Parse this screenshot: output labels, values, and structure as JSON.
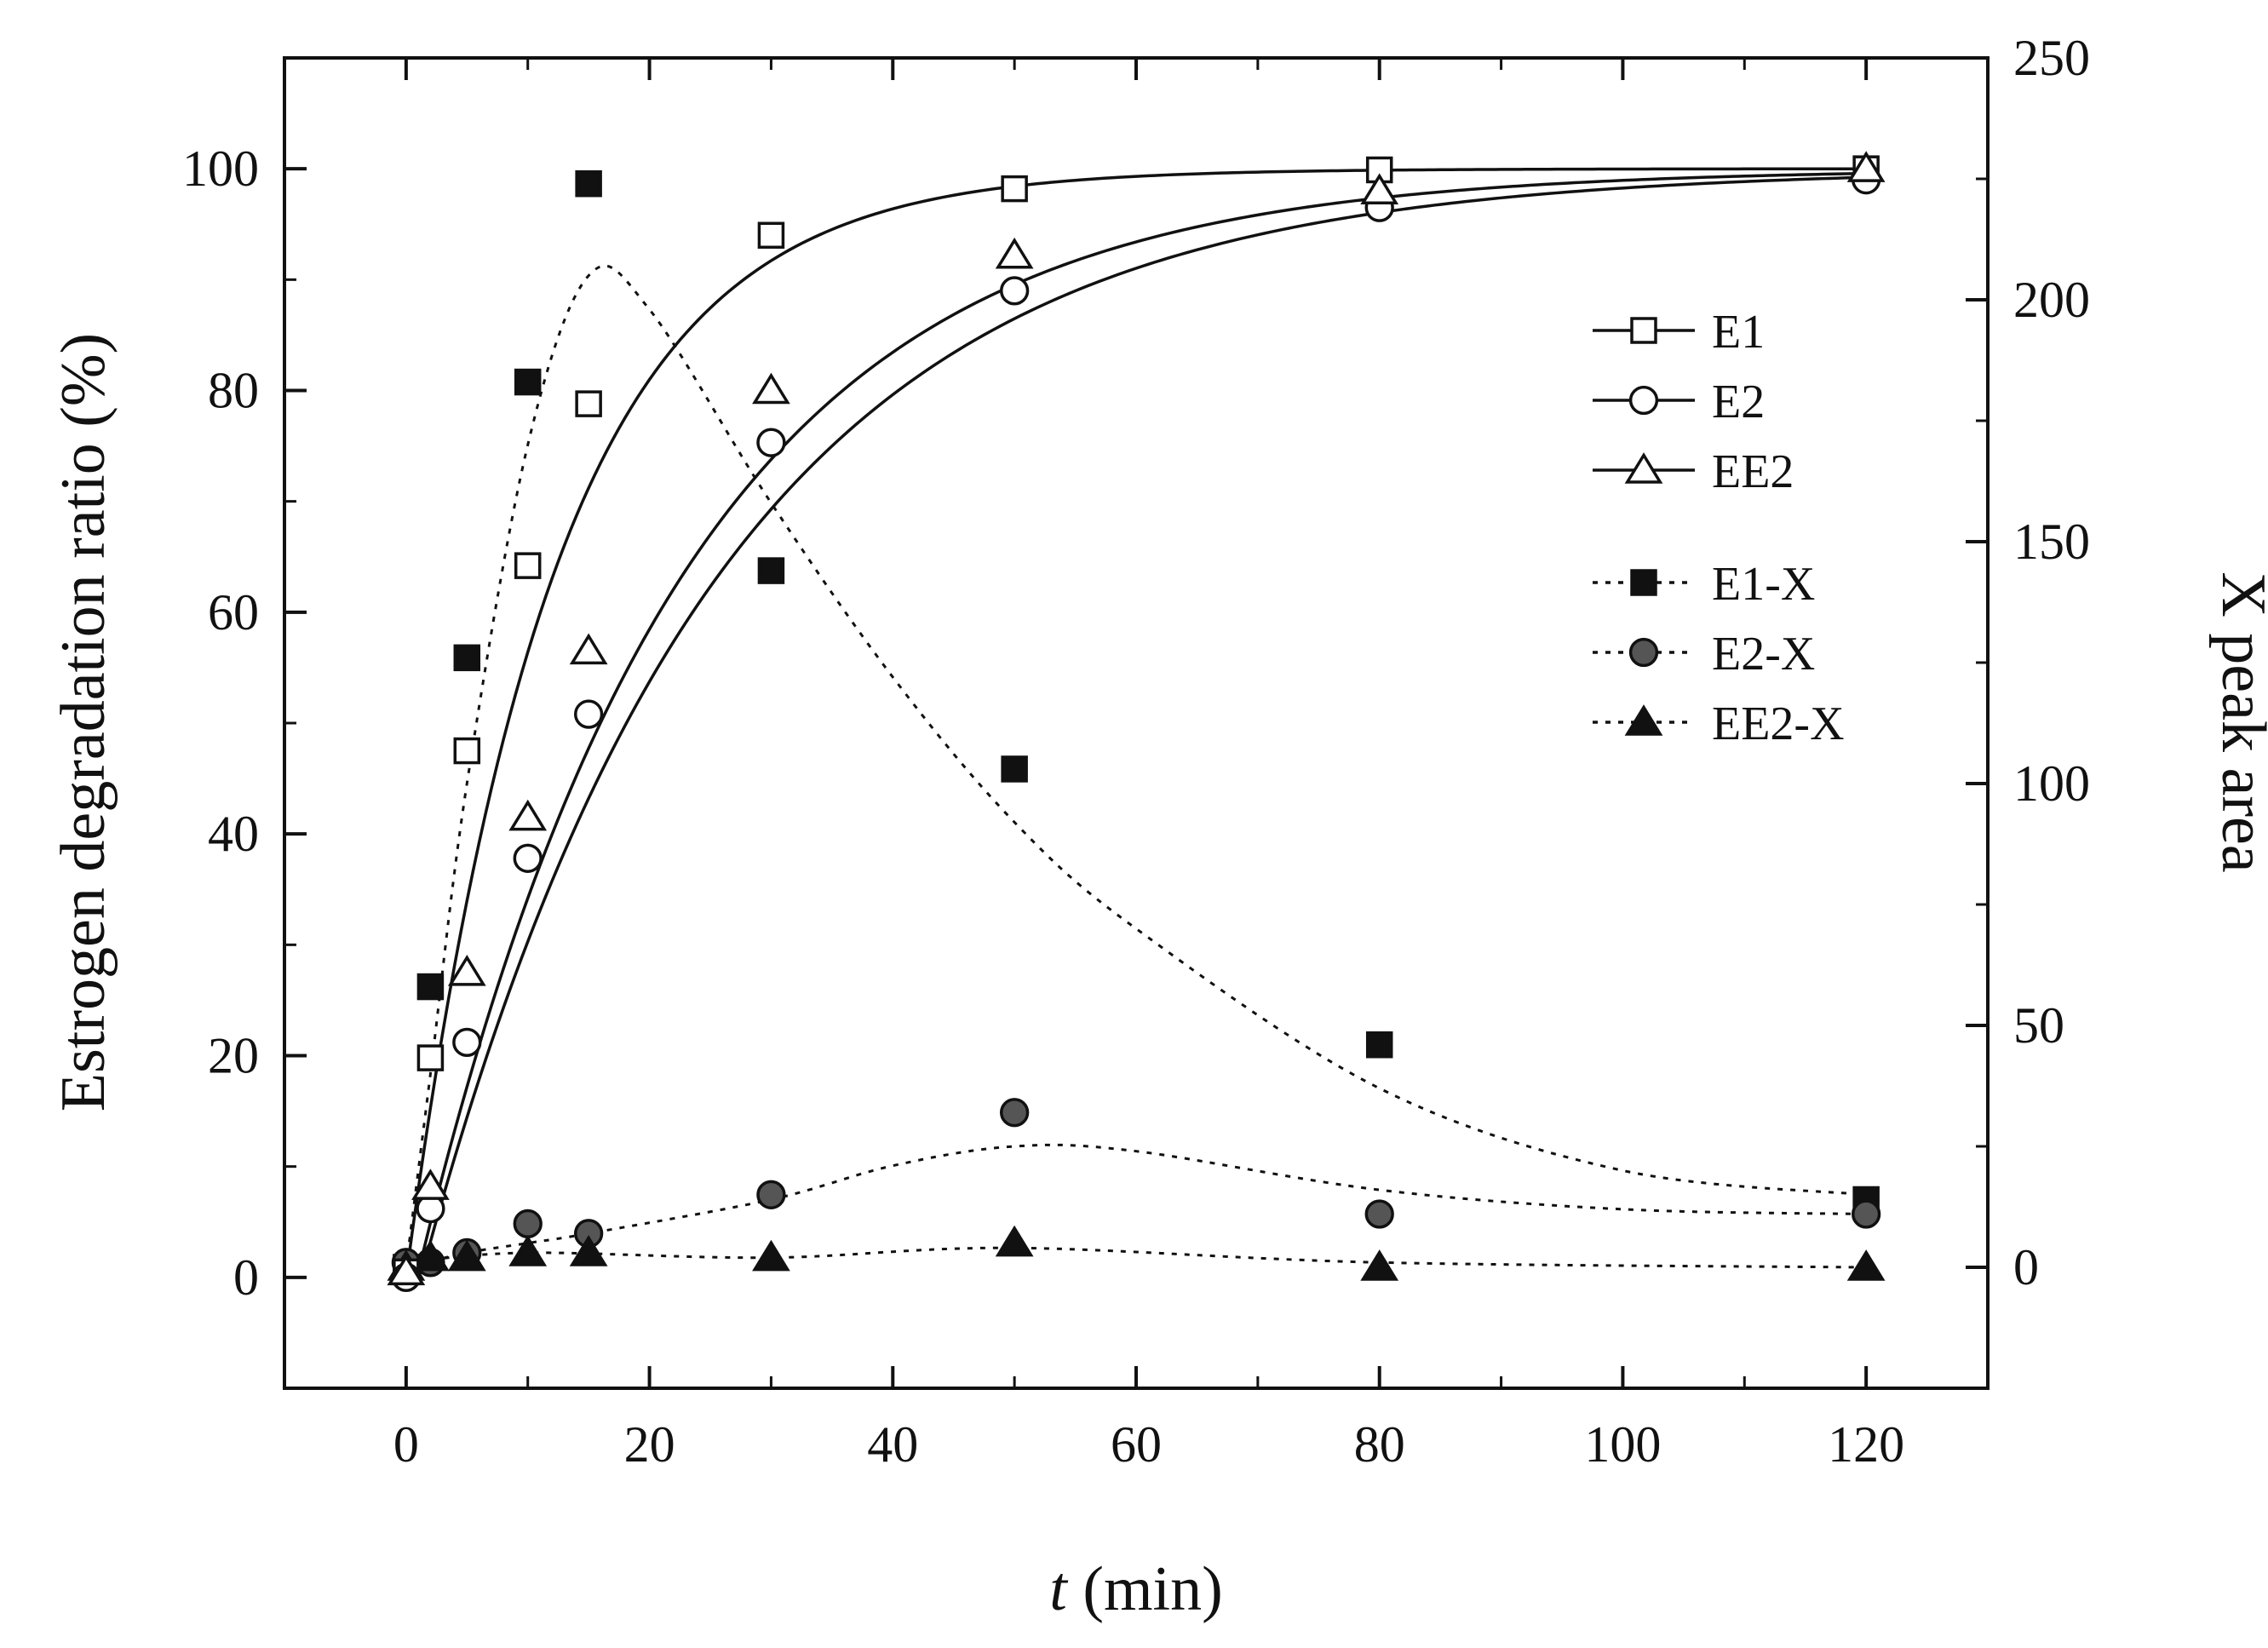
{
  "chart_data": {
    "type": "scatter",
    "x_axis": {
      "label_var": "t",
      "label_rest": " (min)",
      "range": [
        -10,
        130
      ],
      "ticks": [
        0,
        20,
        40,
        60,
        80,
        100,
        120
      ]
    },
    "y_left": {
      "label": "Estrogen degradation ratio (%)",
      "range": [
        -10,
        110
      ],
      "ticks": [
        0,
        20,
        40,
        60,
        80,
        100
      ]
    },
    "y_right": {
      "label": "X peak area",
      "range": [
        -25,
        250
      ],
      "ticks": [
        0,
        50,
        100,
        150,
        200,
        250
      ]
    },
    "series": [
      {
        "name": "E1",
        "axis": "left",
        "marker": "square-open",
        "line": "solid",
        "x": [
          0,
          2,
          5,
          10,
          15,
          30,
          50,
          80,
          120
        ],
        "y": [
          0.5,
          19.8,
          47.5,
          64.2,
          78.8,
          94.0,
          98.2,
          99.9,
          100.0
        ],
        "fit": {
          "model": "1-exp",
          "A": 100,
          "k": 0.083,
          "x0": 0
        }
      },
      {
        "name": "E2",
        "axis": "left",
        "marker": "circle-open",
        "line": "solid",
        "x": [
          0,
          2,
          5,
          10,
          15,
          30,
          50,
          80,
          120
        ],
        "y": [
          0.0,
          6.2,
          21.2,
          37.8,
          50.8,
          75.3,
          89.0,
          96.5,
          99.0
        ],
        "fit": {
          "model": "1-exp",
          "A": 100,
          "k": 0.041,
          "x0": 1.2
        }
      },
      {
        "name": "EE2",
        "axis": "left",
        "marker": "triangle-open",
        "line": "solid",
        "x": [
          0,
          2,
          5,
          10,
          15,
          30,
          50,
          80,
          120
        ],
        "y": [
          0.5,
          8.2,
          27.5,
          41.5,
          56.5,
          80.0,
          92.2,
          98.0,
          100.0
        ],
        "fit": {
          "model": "1-exp",
          "A": 100,
          "k": 0.046,
          "x0": 0.9
        }
      },
      {
        "name": "E1-X",
        "axis": "right",
        "marker": "square-filled",
        "line": "dotted",
        "x": [
          0,
          2,
          5,
          10,
          15,
          30,
          50,
          80,
          120
        ],
        "y": [
          0,
          58,
          126,
          183,
          224,
          144,
          103,
          46,
          14
        ],
        "curve": [
          [
            0,
            0
          ],
          [
            2,
            40
          ],
          [
            5,
            100
          ],
          [
            10,
            170
          ],
          [
            15,
            205
          ],
          [
            20,
            198
          ],
          [
            30,
            158
          ],
          [
            40,
            122
          ],
          [
            50,
            92
          ],
          [
            60,
            70
          ],
          [
            80,
            37
          ],
          [
            100,
            20
          ],
          [
            120,
            15
          ]
        ]
      },
      {
        "name": "E2-X",
        "axis": "right",
        "marker": "circle-filled",
        "line": "dotted",
        "x": [
          0,
          2,
          5,
          10,
          15,
          30,
          50,
          80,
          120
        ],
        "y": [
          1,
          1,
          3,
          9,
          7,
          15,
          32,
          11,
          11
        ],
        "curve": [
          [
            0,
            0
          ],
          [
            5,
            3
          ],
          [
            10,
            5
          ],
          [
            15,
            7
          ],
          [
            30,
            14
          ],
          [
            40,
            21
          ],
          [
            50,
            25
          ],
          [
            60,
            24
          ],
          [
            80,
            16
          ],
          [
            100,
            12
          ],
          [
            120,
            11
          ]
        ]
      },
      {
        "name": "EE2-X",
        "axis": "right",
        "marker": "triangle-filled",
        "line": "dotted",
        "x": [
          0,
          2,
          5,
          10,
          15,
          30,
          50,
          80,
          120
        ],
        "y": [
          0,
          2,
          2,
          3,
          3,
          2,
          5,
          0,
          0
        ],
        "curve": [
          [
            0,
            1
          ],
          [
            10,
            3
          ],
          [
            30,
            2
          ],
          [
            50,
            4
          ],
          [
            80,
            1
          ],
          [
            120,
            0
          ]
        ]
      }
    ],
    "legend_position": "right-middle",
    "colors": {
      "frame": "#111111",
      "marker_fill_dark": "#111111",
      "marker_fill_grey": "#555555",
      "marker_open": "#ffffff"
    }
  }
}
